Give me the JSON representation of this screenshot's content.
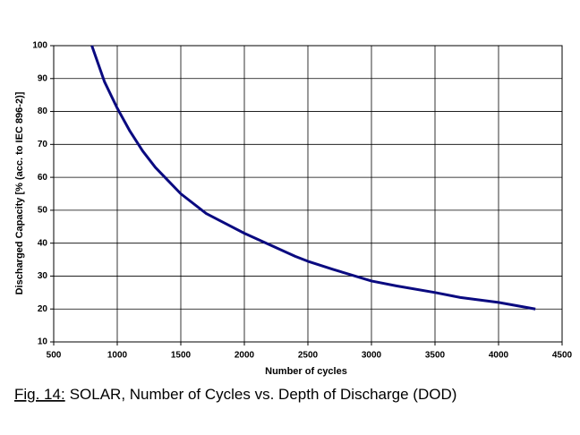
{
  "chart_data": {
    "type": "line",
    "x_label": "Number of cycles",
    "y_label": "Discharged Capacity [% (acc. to IEC 896-2)]",
    "caption_ref": "Fig. 14:",
    "caption": "SOLAR, Number of Cycles vs. Depth of Discharge (DOD)",
    "x": [
      800,
      900,
      1000,
      1100,
      1200,
      1300,
      1400,
      1500,
      1700,
      1800,
      2000,
      2200,
      2400,
      2500,
      2700,
      3000,
      3200,
      3500,
      3700,
      4000,
      4290
    ],
    "series": [
      {
        "color": "#0a0a80",
        "values": [
          100,
          89,
          81,
          74,
          68,
          63,
          59,
          55,
          49,
          47,
          43,
          39.5,
          36,
          34.5,
          32,
          28.5,
          27,
          25,
          23.5,
          22,
          20
        ]
      }
    ],
    "xlim": [
      500,
      4500
    ],
    "xticks": [
      500,
      1000,
      1500,
      2000,
      2500,
      3000,
      3500,
      4000,
      4500
    ],
    "ylim": [
      10,
      100
    ],
    "yticks": [
      10,
      20,
      30,
      40,
      50,
      60,
      70,
      80,
      90,
      100
    ],
    "grid": true
  }
}
